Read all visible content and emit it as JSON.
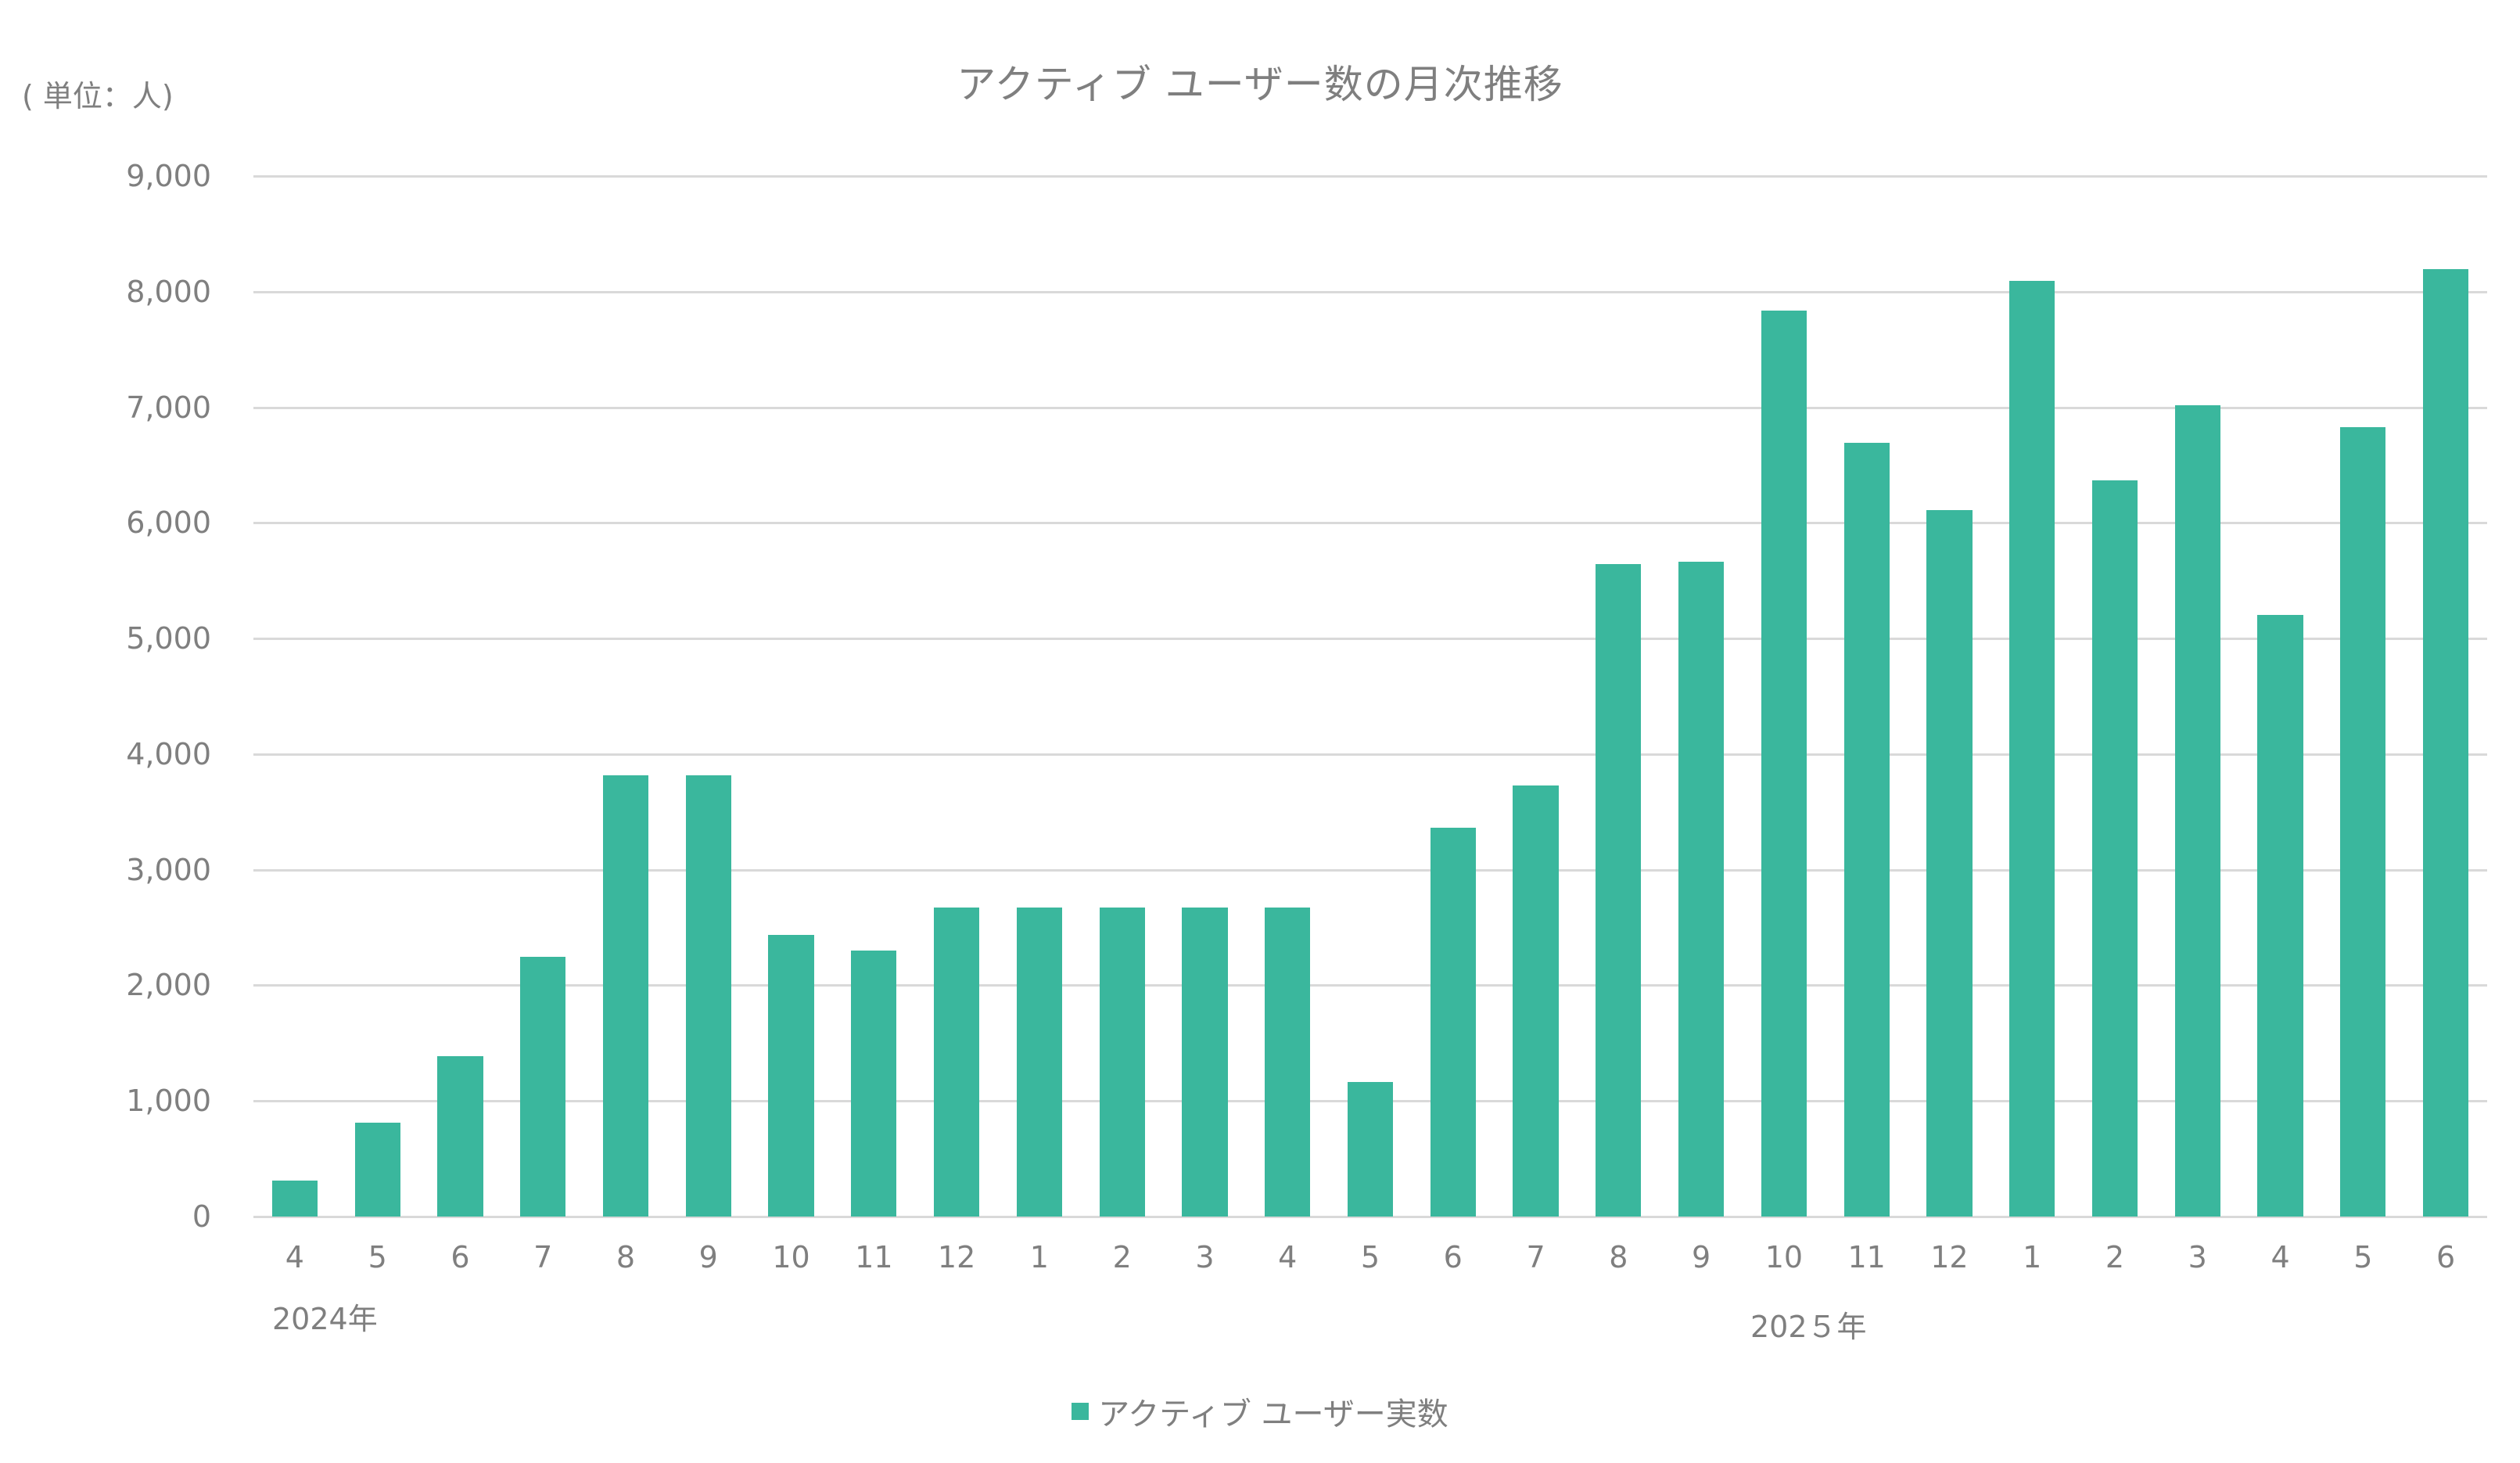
{
  "title": "アクティブ ユーザー数の月次推移",
  "unit_label": "( 単位：人)",
  "legend": {
    "label": "アクティブ ユーザー実数",
    "color": "#3ab79d"
  },
  "years": [
    {
      "label": "2024年",
      "start_index": 0
    },
    {
      "label": "202５年",
      "start_index": 9
    }
  ],
  "chart_data": {
    "type": "bar",
    "title": "アクティブ ユーザー数の月次推移",
    "xlabel": "",
    "ylabel": "( 単位：人)",
    "ylim": [
      0,
      9000
    ],
    "yticks": [
      0,
      1000,
      2000,
      3000,
      4000,
      5000,
      6000,
      7000,
      8000,
      9000
    ],
    "ytick_labels": [
      "0",
      "1,000",
      "2,000",
      "3,000",
      "4,000",
      "5,000",
      "6,000",
      "7,000",
      "8,000",
      "9,000"
    ],
    "grid": true,
    "legend_position": "bottom",
    "categories": [
      "4",
      "5",
      "6",
      "7",
      "8",
      "9",
      "10",
      "11",
      "12",
      "1",
      "2",
      "3",
      "4",
      "5",
      "6",
      "7",
      "8",
      "9",
      "10",
      "11",
      "12",
      "1",
      "2",
      "3",
      "4",
      "5",
      "6"
    ],
    "category_groups": [
      "2024年",
      "2024年",
      "2024年",
      "2024年",
      "2024年",
      "2024年",
      "2024年",
      "2024年",
      "2024年",
      "202５年",
      "202５年",
      "202５年",
      "202５年",
      "202５年",
      "202５年",
      "202５年",
      "202５年",
      "202５年",
      "202５年",
      "202５年",
      "202５年",
      "202５年",
      "202５年",
      "202５年",
      "202５年",
      "202５年",
      "202５年"
    ],
    "series": [
      {
        "name": "アクティブ ユーザー実数",
        "color": "#3ab79d",
        "values": [
          310,
          815,
          1390,
          2250,
          3815,
          3820,
          2435,
          2300,
          2670,
          2670,
          2670,
          2670,
          2670,
          1165,
          3360,
          3730,
          5645,
          5665,
          7835,
          6695,
          6110,
          8095,
          6370,
          7020,
          5205,
          6830,
          8195
        ]
      }
    ]
  }
}
